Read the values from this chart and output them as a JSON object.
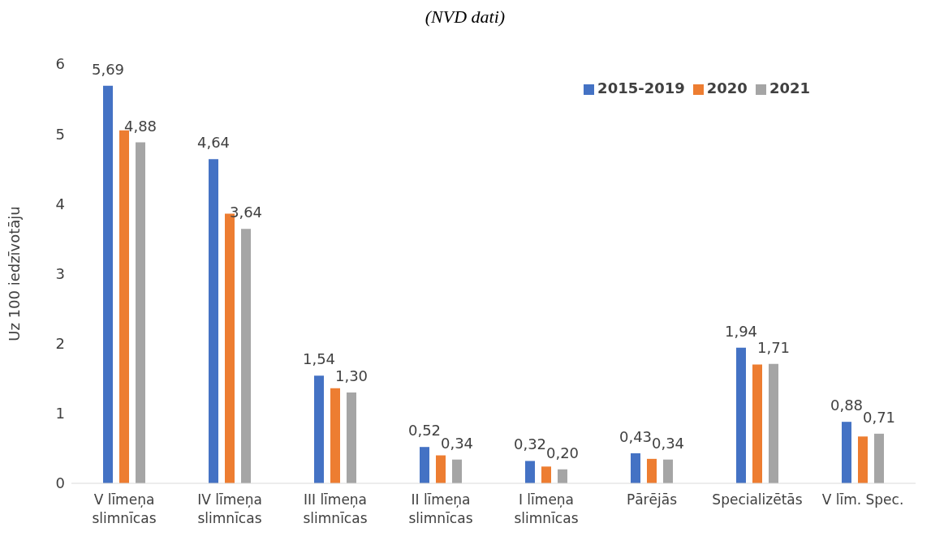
{
  "chart_data": {
    "type": "bar",
    "title": "(NVD dati)",
    "ylabel": "Uz 100 iedzīvotāju",
    "categories": [
      "V līmeņa slimnīcas",
      "IV līmeņa slimnīcas",
      "III līmeņa slimnīcas",
      "II līmeņa slimnīcas",
      "I līmeņa slimnīcas",
      "Pārējās",
      "Specializētās",
      "V līm. Spec."
    ],
    "series": [
      {
        "name": "2015-2019",
        "color": "#4472c4",
        "values": [
          5.69,
          4.64,
          1.54,
          0.52,
          0.32,
          0.43,
          1.94,
          0.88
        ],
        "value_labels": [
          "5,69",
          "4,64",
          "1,54",
          "0,52",
          "0,32",
          "0,43",
          "1,94",
          "0,88"
        ]
      },
      {
        "name": "2020",
        "color": "#ed7d31",
        "values": [
          5.05,
          3.86,
          1.36,
          0.4,
          0.24,
          0.35,
          1.7,
          0.67
        ]
      },
      {
        "name": "2021",
        "color": "#a5a5a5",
        "values": [
          4.88,
          3.64,
          1.3,
          0.34,
          0.2,
          0.34,
          1.71,
          0.71
        ],
        "value_labels": [
          "4,88",
          "3,64",
          "1,30",
          "0,34",
          "0,20",
          "0,34",
          "1,71",
          "0,71"
        ]
      }
    ],
    "ylim": [
      0,
      6
    ],
    "yticks": [
      0,
      1,
      2,
      3,
      4,
      5,
      6
    ],
    "grid": false,
    "legend": "top right"
  }
}
